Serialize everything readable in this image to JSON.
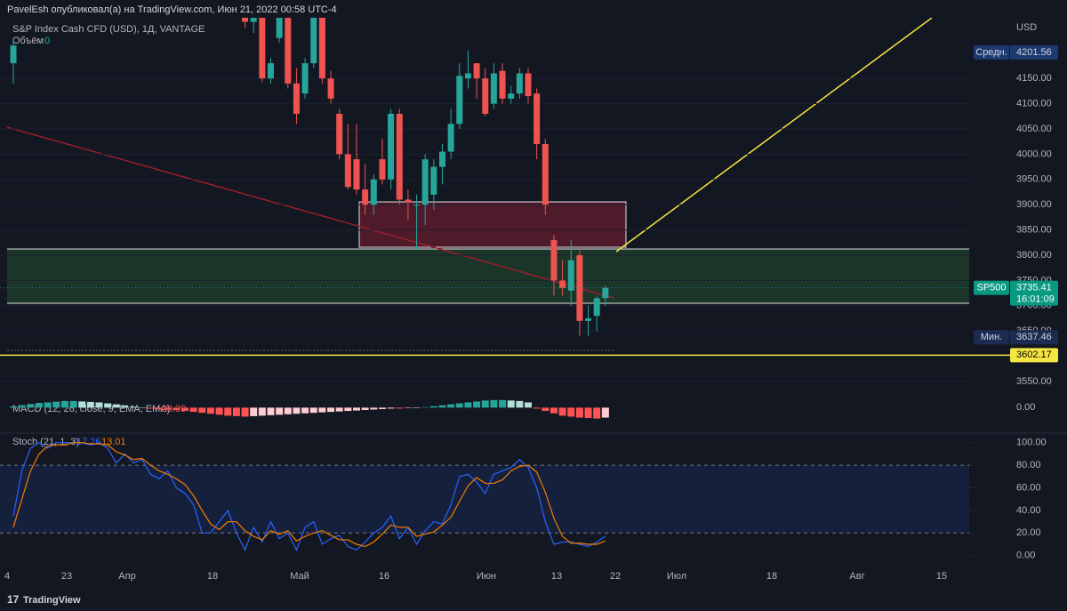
{
  "header": {
    "publisher": "PavelEsh опубликовал(а) на TradingView.com, Июн 21, 2022 00:58 UTC-4",
    "symbol": "S&P Index Cash CFD (USD), 1Д, VANTAGE",
    "volume_label": "Объём",
    "volume_value": 0
  },
  "chart_data": [
    {
      "type": "candlestick",
      "currency": "USD",
      "open": [
        4180,
        null,
        null,
        null,
        null,
        null,
        null,
        null,
        null,
        null,
        null,
        null,
        null,
        null,
        null,
        null,
        null,
        null,
        null,
        null,
        null,
        null,
        null,
        null,
        null,
        null,
        null,
        4296,
        4262,
        4278,
        4150,
        4230,
        4270,
        4140,
        4120,
        4180,
        4290,
        4150,
        4080,
        4000,
        3990,
        3930,
        3900,
        3990,
        3950,
        4080,
        3910,
        3900,
        3900,
        3920,
        3975,
        4005,
        4060,
        4150,
        4180,
        4150,
        4100,
        4165,
        4110,
        4120,
        4160,
        4120,
        4020,
        3830,
        3750,
        3730,
        3800,
        3670,
        3680,
        3715
      ],
      "high": [
        4230,
        null,
        null,
        null,
        null,
        null,
        null,
        null,
        null,
        null,
        null,
        null,
        null,
        null,
        null,
        null,
        null,
        null,
        null,
        null,
        null,
        null,
        null,
        null,
        null,
        null,
        null,
        4300,
        4280,
        4290,
        4190,
        4300,
        4290,
        4170,
        4190,
        4300,
        4300,
        4165,
        4090,
        4060,
        4060,
        3980,
        3960,
        4030,
        4090,
        4090,
        3930,
        3920,
        4000,
        3990,
        4020,
        4090,
        4180,
        4205,
        4180,
        4170,
        4180,
        4180,
        4135,
        4170,
        4170,
        4130,
        4030,
        3840,
        3790,
        3830,
        3810,
        3700,
        3720,
        3740
      ],
      "low": [
        4140,
        null,
        null,
        null,
        null,
        null,
        null,
        null,
        null,
        null,
        null,
        null,
        null,
        null,
        null,
        null,
        null,
        null,
        null,
        null,
        null,
        null,
        null,
        null,
        null,
        null,
        null,
        4250,
        4240,
        4142,
        4140,
        4220,
        4130,
        4060,
        4110,
        4170,
        4140,
        4100,
        3990,
        3930,
        3920,
        3880,
        3880,
        3940,
        3930,
        3900,
        3870,
        3810,
        3860,
        3890,
        3940,
        3990,
        4050,
        4130,
        4110,
        4075,
        4090,
        4100,
        4100,
        4110,
        4100,
        3990,
        3880,
        3720,
        3720,
        3700,
        3640,
        3640,
        3650,
        3700
      ],
      "close": [
        4215,
        null,
        null,
        null,
        null,
        null,
        null,
        null,
        null,
        null,
        null,
        null,
        null,
        null,
        null,
        null,
        null,
        null,
        null,
        null,
        null,
        null,
        null,
        null,
        null,
        null,
        null,
        4262,
        4270,
        4150,
        4180,
        4290,
        4140,
        4080,
        4180,
        4290,
        4150,
        4110,
        4000,
        3935,
        3930,
        3900,
        3950,
        3950,
        4080,
        3910,
        3905,
        3900,
        3990,
        3975,
        4005,
        4060,
        4155,
        4160,
        4150,
        4080,
        4160,
        4110,
        4120,
        4160,
        4115,
        4020,
        3900,
        3750,
        3735,
        3790,
        3670,
        3675,
        3715,
        3735.41
      ],
      "up_color": "#26a69a",
      "down_color": "#ef5350",
      "ylim": [
        3520,
        4270
      ],
      "yticks": [
        {
          "value": 4150,
          "label": "4150.00"
        },
        {
          "value": 4100,
          "label": "4100.00"
        },
        {
          "value": 4050,
          "label": "4050.00"
        },
        {
          "value": 4000,
          "label": "4000.00"
        },
        {
          "value": 3950,
          "label": "3950.00"
        },
        {
          "value": 3900,
          "label": "3900.00"
        },
        {
          "value": 3850,
          "label": "3850.00"
        },
        {
          "value": 3800,
          "label": "3800.00"
        },
        {
          "value": 3750,
          "label": "3750.00"
        },
        {
          "value": 3700,
          "label": "3700.00"
        },
        {
          "value": 3650,
          "label": "3650.00"
        },
        {
          "value": 3550,
          "label": "3550.00"
        }
      ],
      "last_price_label": {
        "name": "SP500",
        "countdown": "16:01:09",
        "color": "#089981"
      },
      "price_labels": [
        {
          "name": "Средн.",
          "value": 4201.56,
          "color": "#1c3a70"
        },
        {
          "name": "Мин.",
          "value": 3637.46,
          "color": "#1c2b52"
        },
        {
          "value": 3602.17,
          "color": "#f5e642"
        }
      ]
    },
    {
      "type": "bar",
      "title": "MACD (12, 26, close, 9, EMA, EMA)",
      "value": -28.39,
      "values": [
        5,
        10,
        15,
        20,
        22,
        25,
        28,
        28,
        26,
        24,
        22,
        18,
        14,
        8,
        4,
        0,
        -4,
        -6,
        -8,
        -10,
        -14,
        -18,
        -22,
        -26,
        -30,
        -34,
        -36,
        -38,
        -36,
        -34,
        -32,
        -30,
        -28,
        -26,
        -24,
        -22,
        -20,
        -18,
        -16,
        -14,
        -12,
        -10,
        -8,
        -6,
        -4,
        -4,
        -2,
        -1,
        2,
        6,
        10,
        14,
        18,
        22,
        26,
        30,
        32,
        32,
        30,
        28,
        22,
        -4,
        -14,
        -24,
        -34,
        -38,
        -42,
        -44,
        -46,
        -42
      ],
      "colors": [
        "#26a69a",
        "#b2dfdb",
        "#ff5252",
        "#ffcdd2"
      ],
      "ylim": [
        -100,
        50
      ],
      "yticks": [
        {
          "value": 0,
          "label": "0.00"
        }
      ]
    },
    {
      "type": "line",
      "title": "Stoch (21, 1, 3)",
      "series": [
        {
          "color": "#2962ff",
          "values": [
            35,
            75,
            95,
            100,
            95,
            100,
            100,
            100,
            100,
            98,
            100,
            95,
            82,
            90,
            82,
            85,
            72,
            68,
            75,
            60,
            55,
            45,
            20,
            20,
            30,
            40,
            20,
            5,
            25,
            12,
            30,
            15,
            20,
            5,
            25,
            30,
            10,
            15,
            18,
            8,
            5,
            12,
            20,
            25,
            35,
            15,
            25,
            10,
            22,
            30,
            28,
            45,
            70,
            72,
            65,
            55,
            72,
            75,
            78,
            85,
            78,
            60,
            30,
            10,
            12,
            12,
            10,
            8,
            12,
            17.26
          ]
        },
        {
          "color": "#f57c00",
          "values": [
            25,
            50,
            75,
            90,
            97,
            98,
            98,
            100,
            100,
            99,
            99,
            98,
            92,
            89,
            85,
            86,
            80,
            75,
            72,
            68,
            63,
            53,
            40,
            28,
            23,
            30,
            30,
            22,
            17,
            14,
            22,
            19,
            22,
            13,
            17,
            20,
            22,
            18,
            14,
            14,
            10,
            8,
            12,
            19,
            27,
            25,
            25,
            17,
            19,
            21,
            27,
            34,
            48,
            62,
            69,
            64,
            64,
            67,
            75,
            79,
            80,
            74,
            56,
            33,
            17,
            11,
            11,
            10,
            10,
            13.01
          ]
        }
      ],
      "band": [
        20,
        80
      ],
      "ylim": [
        -10,
        110
      ],
      "yticks": [
        {
          "value": 100,
          "label": "100.00"
        },
        {
          "value": 80,
          "label": "80.00"
        },
        {
          "value": 60,
          "label": "60.00"
        },
        {
          "value": 40,
          "label": "40.00"
        },
        {
          "value": 20,
          "label": "20.00"
        },
        {
          "value": 0,
          "label": "0.00"
        }
      ]
    }
  ],
  "x_axis_labels": [
    "4",
    "23",
    "Апр",
    "18",
    "Май",
    "16",
    "Июн",
    "13",
    "22",
    "Июл",
    "18",
    "Авг",
    "15"
  ],
  "footer": {
    "brand": "TradingView"
  }
}
